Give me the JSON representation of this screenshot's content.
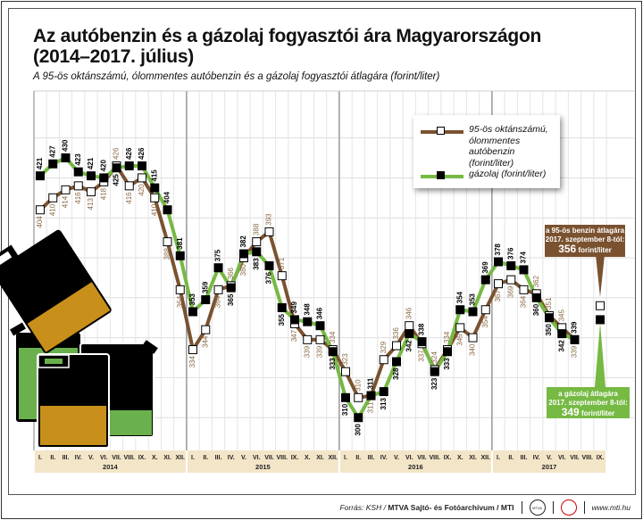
{
  "chart_data": {
    "type": "line",
    "title": "Az autóbenzin és a gázolaj fogyasztói ára Magyarországon (2014–2017. július)",
    "title_line1": "Az autóbenzin és a gázolaj fogyasztói ára Magyarországon",
    "title_line2": "(2014–2017. július)",
    "subtitle": "A 95-ös oktánszámú, ólommentes autóbenzin és a gázolaj fogyasztói átlagára (forint/liter)",
    "ylim": [
      290,
      440
    ],
    "grid": true,
    "legend_placement": "top-right",
    "years": [
      {
        "label": "2014",
        "months": [
          "I.",
          "II.",
          "III.",
          "IV.",
          "V.",
          "VI.",
          "VII.",
          "VIII.",
          "IX.",
          "X.",
          "XI.",
          "XII."
        ]
      },
      {
        "label": "2015",
        "months": [
          "I.",
          "II.",
          "III.",
          "IV.",
          "V.",
          "VI.",
          "VII.",
          "VIII.",
          "IX.",
          "X.",
          "XI.",
          "XII."
        ]
      },
      {
        "label": "2016",
        "months": [
          "I.",
          "II.",
          "III.",
          "IV.",
          "V.",
          "VI.",
          "VII.",
          "VIII.",
          "IX.",
          "X.",
          "XI.",
          "XII."
        ]
      },
      {
        "label": "2017",
        "months": [
          "I.",
          "II.",
          "III.",
          "IV.",
          "V.",
          "VI.",
          "VII.",
          "VIII.",
          "IX."
        ]
      }
    ],
    "series": [
      {
        "name": "95-ös oktánszámú, ólommentes autóbenzin (forint/liter)",
        "color": "#7a5230",
        "marker": "white-square",
        "values": [
          404,
          410,
          414,
          416,
          413,
          418,
          426,
          416,
          420,
          410,
          388,
          364,
          334,
          344,
          364,
          366,
          380,
          388,
          393,
          371,
          347,
          339,
          339,
          334,
          323,
          310,
          311,
          329,
          336,
          346,
          337,
          324,
          334,
          345,
          340,
          354,
          367,
          369,
          364,
          362,
          351,
          345,
          339
        ],
        "september_2017": 356
      },
      {
        "name": "gázolaj (forint/liter)",
        "color": "#76b943",
        "marker": "black-square",
        "values": [
          421,
          427,
          430,
          423,
          421,
          420,
          425,
          426,
          426,
          415,
          404,
          381,
          353,
          359,
          375,
          365,
          382,
          383,
          376,
          355,
          349,
          348,
          346,
          333,
          310,
          300,
          311,
          313,
          328,
          342,
          338,
          323,
          333,
          354,
          353,
          369,
          378,
          376,
          374,
          360,
          350,
          342,
          339
        ],
        "september_2017": 349
      }
    ],
    "legend": {
      "petrol_lines": [
        "95-ös oktánszámú,",
        "ólommentes autóbenzin",
        "(forint/liter)"
      ],
      "diesel": "gázolaj (forint/liter)"
    },
    "annotations": {
      "petrol": {
        "line1": "a 95-ös benzin átlagára",
        "line2": "2017. szeptember 8-tól:",
        "value": "356",
        "unit": "forint/liter",
        "color": "#7a5230"
      },
      "diesel": {
        "line1": "a gázolaj átlagára",
        "line2": "2017. szeptember 8-tól:",
        "value": "349",
        "unit": "forint/liter",
        "color": "#76b943"
      }
    }
  },
  "colors": {
    "band": "#f3e5c8",
    "petrol_fill": "#c8901a",
    "diesel_fill": "#6ab04c"
  },
  "footer": {
    "source_prefix": "Forrás: KSH / ",
    "source_bold": "MTVA Sajtó- és Fotóarchívum / MTI",
    "logo1": "MTVA",
    "url": "www.mti.hu"
  }
}
